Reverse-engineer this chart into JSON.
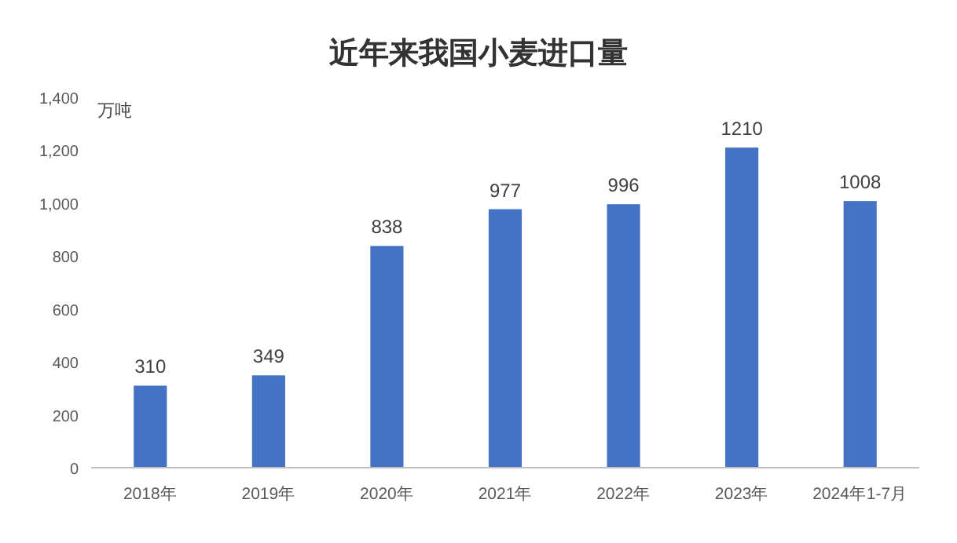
{
  "chart_data": {
    "type": "bar",
    "title": "近年来我国小麦进口量",
    "ylabel": "万吨",
    "categories": [
      "2018年",
      "2019年",
      "2020年",
      "2021年",
      "2022年",
      "2023年",
      "2024年1-7月"
    ],
    "values": [
      310,
      349,
      838,
      977,
      996,
      1210,
      1008
    ],
    "color": "#4472c4",
    "ylim": [
      0,
      1400
    ],
    "yticks": [
      {
        "value": 0,
        "label": "0"
      },
      {
        "value": 200,
        "label": "200"
      },
      {
        "value": 400,
        "label": "400"
      },
      {
        "value": 600,
        "label": "600"
      },
      {
        "value": 800,
        "label": "800"
      },
      {
        "value": 1000,
        "label": "1,000"
      },
      {
        "value": 1200,
        "label": "1,200"
      },
      {
        "value": 1400,
        "label": "1,400"
      }
    ],
    "grid": false,
    "data_labels": true
  }
}
